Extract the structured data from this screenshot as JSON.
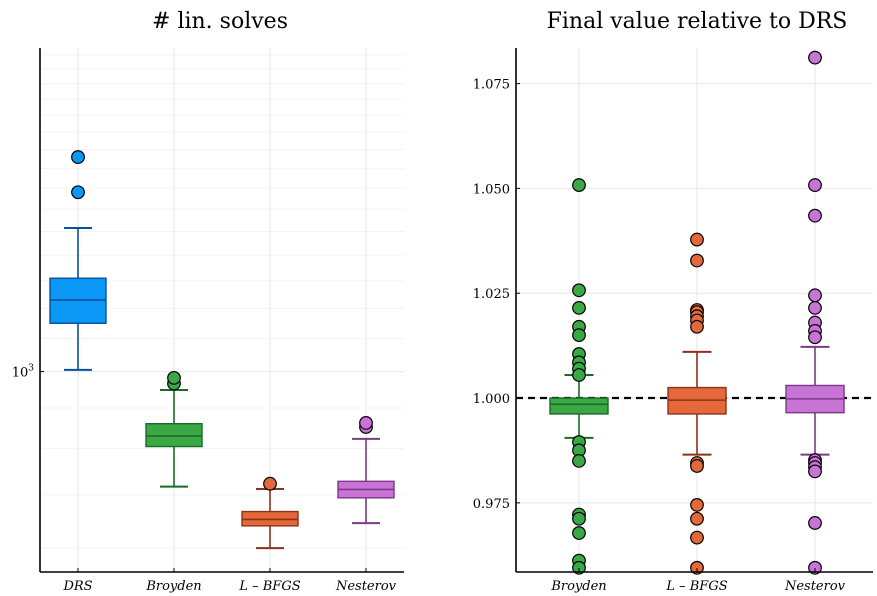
{
  "chart_data": [
    {
      "type": "box",
      "title": "# lin. solves",
      "yscale": "log",
      "ylim": [
        560,
        2550
      ],
      "yticks": [
        {
          "value": 1000,
          "base": "10",
          "exp": "3"
        }
      ],
      "minor_gridlines": true,
      "categories": [
        "DRS",
        "Broyden",
        "L – BFGS",
        "Nesterov"
      ],
      "colors": [
        "#0a97f5",
        "#39a845",
        "#e3683a",
        "#c873d6"
      ],
      "strokes": [
        "#08519c",
        "#1b6b26",
        "#8b3317",
        "#7b3a86"
      ],
      "boxes": [
        {
          "whisker_low": 1005,
          "q1": 1150,
          "median": 1230,
          "q3": 1310,
          "whisker_high": 1515,
          "outliers": [
            1680,
            1860
          ]
        },
        {
          "whisker_low": 717,
          "q1": 805,
          "median": 830,
          "q3": 860,
          "whisker_high": 948,
          "outliers": [
            966,
            982
          ]
        },
        {
          "whisker_low": 600,
          "q1": 640,
          "median": 652,
          "q3": 667,
          "whisker_high": 712,
          "outliers": [
            723
          ]
        },
        {
          "whisker_low": 645,
          "q1": 694,
          "median": 711,
          "q3": 728,
          "whisker_high": 823,
          "outliers": [
            852,
            862
          ]
        }
      ]
    },
    {
      "type": "box",
      "title": "Final value relative to DRS",
      "yscale": "linear",
      "ylim": [
        0.9585,
        1.0835
      ],
      "yticks": [
        {
          "value": 0.975,
          "label": "0.975"
        },
        {
          "value": 1.0,
          "label": "1.000"
        },
        {
          "value": 1.025,
          "label": "1.025"
        },
        {
          "value": 1.05,
          "label": "1.050"
        },
        {
          "value": 1.075,
          "label": "1.075"
        }
      ],
      "reference_line": 1.0,
      "categories": [
        "Broyden",
        "L – BFGS",
        "Nesterov"
      ],
      "colors": [
        "#39a845",
        "#e3683a",
        "#c873d6"
      ],
      "strokes": [
        "#1b6b26",
        "#8b3317",
        "#7b3a86"
      ],
      "boxes": [
        {
          "whisker_low": 0.9905,
          "q1": 0.9962,
          "median": 0.9985,
          "q3": 1.0,
          "whisker_high": 1.0055,
          "outliers": [
            1.0508,
            1.0257,
            1.0215,
            1.017,
            1.015,
            1.0105,
            1.0085,
            1.007,
            1.0055,
            0.9895,
            0.9875,
            0.985,
            0.9722,
            0.9712,
            0.9678,
            0.9612,
            0.9595
          ]
        },
        {
          "whisker_low": 0.9865,
          "q1": 0.9962,
          "median": 0.9995,
          "q3": 1.0025,
          "whisker_high": 1.011,
          "outliers": [
            1.0378,
            1.0328,
            1.021,
            1.0205,
            1.0195,
            1.0185,
            1.017,
            0.9845,
            0.9838,
            0.9745,
            0.9712,
            0.9667,
            0.9595
          ]
        },
        {
          "whisker_low": 0.9865,
          "q1": 0.9965,
          "median": 0.9998,
          "q3": 1.003,
          "whisker_high": 1.0122,
          "outliers": [
            1.0812,
            1.0508,
            1.0435,
            1.0245,
            1.0215,
            1.018,
            1.016,
            1.0145,
            0.9852,
            0.9845,
            0.9835,
            0.9825,
            0.9702,
            0.9595
          ]
        }
      ]
    }
  ]
}
